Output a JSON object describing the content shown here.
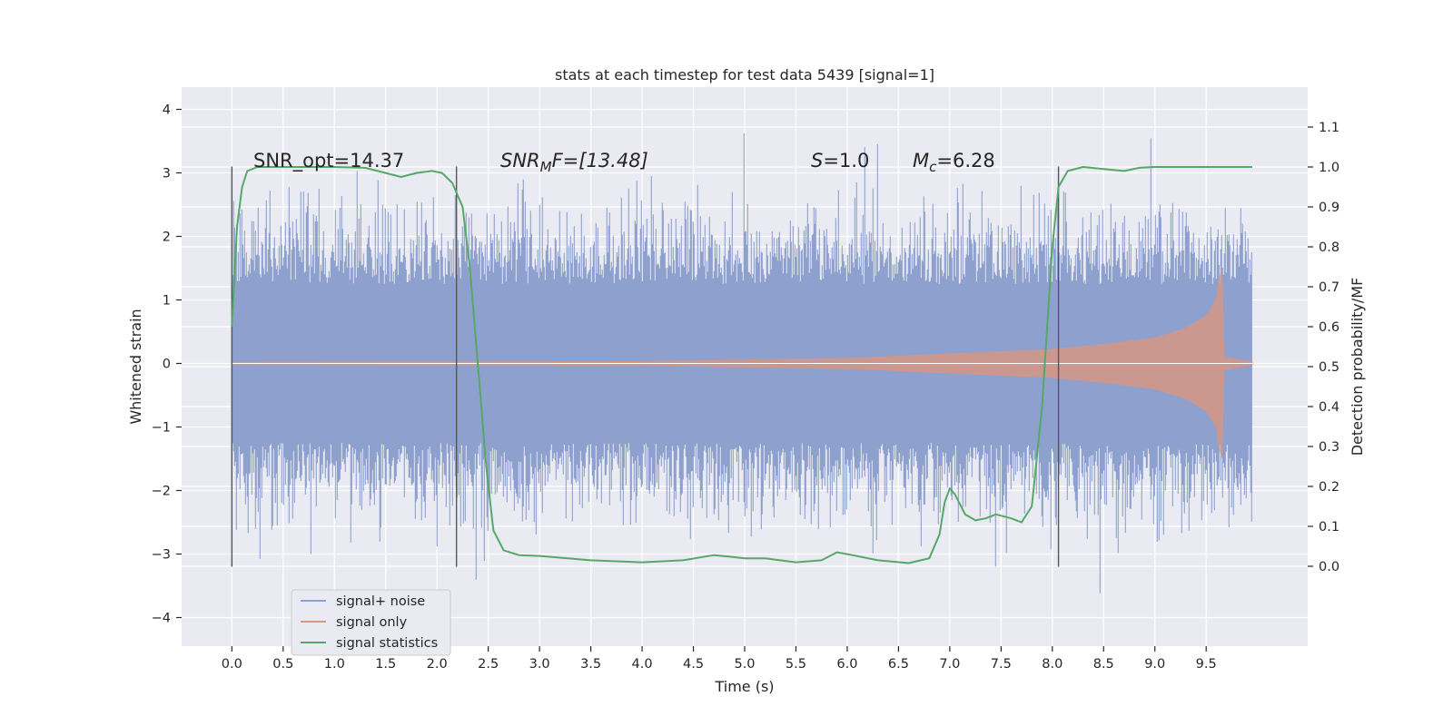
{
  "chart_data": {
    "type": "line",
    "title": "stats at each timestep for test data 5439 [signal=1]",
    "xlabel": "Time (s)",
    "ylabel_left": "Whitened strain",
    "ylabel_right": "Detection probability/MF",
    "xlim": [
      -0.49,
      10.49
    ],
    "ylim_left": [
      -4.45,
      4.35
    ],
    "ylim_right": [
      -0.2,
      1.2
    ],
    "x_ticks": [
      "0.0",
      "0.5",
      "1.0",
      "1.5",
      "2.0",
      "2.5",
      "3.0",
      "3.5",
      "4.0",
      "4.5",
      "5.0",
      "5.5",
      "6.0",
      "6.5",
      "7.0",
      "7.5",
      "8.0",
      "8.5",
      "9.0",
      "9.5"
    ],
    "x_tick_values": [
      0,
      0.5,
      1,
      1.5,
      2,
      2.5,
      3,
      3.5,
      4,
      4.5,
      5,
      5.5,
      6,
      6.5,
      7,
      7.5,
      8,
      8.5,
      9,
      9.5
    ],
    "y_ticks_left": [
      "4",
      "3",
      "2",
      "1",
      "0",
      "−1",
      "−2",
      "−3",
      "−4"
    ],
    "y_tick_values_left": [
      4,
      3,
      2,
      1,
      0,
      -1,
      -2,
      -3,
      -4
    ],
    "y_ticks_right": [
      "1.1",
      "1.0",
      "0.9",
      "0.8",
      "0.7",
      "0.6",
      "0.5",
      "0.4",
      "0.3",
      "0.2",
      "0.1",
      "0.0"
    ],
    "y_tick_values_right": [
      1.1,
      1.0,
      0.9,
      0.8,
      0.7,
      0.6,
      0.5,
      0.4,
      0.3,
      0.2,
      0.1,
      0.0
    ],
    "grid": true,
    "legend_position": "bottom-left",
    "annotations": {
      "snr_opt": "SNR_opt=14.37",
      "snr_mf_main": "SNR",
      "snr_mf_sub": "M",
      "snr_mf_rest": "F=[13.48]",
      "s_main": "S",
      "s_rest": "=1.0",
      "mc_main": "M",
      "mc_sub": "c",
      "mc_rest": "=6.28"
    },
    "vertical_lines_x": [
      0.0,
      2.19,
      8.06
    ],
    "series": [
      {
        "name": "signal+ noise",
        "color": "#8ea1ce",
        "axis": "left",
        "x_range": [
          0.0,
          9.95
        ],
        "envelope_core": 1.25,
        "peak_range": [
          -4.05,
          3.95
        ]
      },
      {
        "name": "signal only",
        "color": "#e0967a",
        "axis": "left",
        "x_range": [
          0.0,
          9.95
        ],
        "chirp_peak_x": 9.65,
        "amplitude": [
          [
            0.0,
            0.02
          ],
          [
            4.0,
            0.03
          ],
          [
            6.0,
            0.08
          ],
          [
            7.0,
            0.15
          ],
          [
            8.0,
            0.22
          ],
          [
            8.5,
            0.3
          ],
          [
            9.0,
            0.4
          ],
          [
            9.3,
            0.55
          ],
          [
            9.5,
            0.75
          ],
          [
            9.6,
            1.0
          ],
          [
            9.65,
            1.6
          ],
          [
            9.67,
            0.1
          ],
          [
            9.95,
            0.02
          ]
        ]
      },
      {
        "name": "signal statistics",
        "color": "#55a868",
        "axis": "right",
        "points": [
          [
            0.0,
            0.6
          ],
          [
            0.05,
            0.85
          ],
          [
            0.1,
            0.95
          ],
          [
            0.15,
            0.99
          ],
          [
            0.25,
            1.0
          ],
          [
            0.5,
            1.0
          ],
          [
            1.0,
            1.0
          ],
          [
            1.3,
            0.998
          ],
          [
            1.5,
            0.985
          ],
          [
            1.65,
            0.975
          ],
          [
            1.8,
            0.985
          ],
          [
            1.95,
            0.99
          ],
          [
            2.05,
            0.985
          ],
          [
            2.15,
            0.96
          ],
          [
            2.25,
            0.9
          ],
          [
            2.32,
            0.75
          ],
          [
            2.4,
            0.5
          ],
          [
            2.48,
            0.25
          ],
          [
            2.55,
            0.09
          ],
          [
            2.65,
            0.04
          ],
          [
            2.8,
            0.028
          ],
          [
            3.0,
            0.026
          ],
          [
            3.5,
            0.015
          ],
          [
            4.0,
            0.01
          ],
          [
            4.4,
            0.015
          ],
          [
            4.7,
            0.028
          ],
          [
            4.85,
            0.024
          ],
          [
            5.0,
            0.02
          ],
          [
            5.2,
            0.02
          ],
          [
            5.5,
            0.01
          ],
          [
            5.75,
            0.015
          ],
          [
            5.9,
            0.035
          ],
          [
            6.05,
            0.028
          ],
          [
            6.3,
            0.015
          ],
          [
            6.6,
            0.008
          ],
          [
            6.8,
            0.02
          ],
          [
            6.9,
            0.08
          ],
          [
            6.95,
            0.16
          ],
          [
            7.0,
            0.195
          ],
          [
            7.05,
            0.18
          ],
          [
            7.15,
            0.13
          ],
          [
            7.25,
            0.115
          ],
          [
            7.35,
            0.12
          ],
          [
            7.45,
            0.13
          ],
          [
            7.6,
            0.12
          ],
          [
            7.7,
            0.11
          ],
          [
            7.8,
            0.15
          ],
          [
            7.9,
            0.4
          ],
          [
            8.0,
            0.8
          ],
          [
            8.06,
            0.95
          ],
          [
            8.15,
            0.99
          ],
          [
            8.3,
            1.0
          ],
          [
            8.5,
            0.995
          ],
          [
            8.7,
            0.99
          ],
          [
            8.85,
            0.998
          ],
          [
            9.0,
            1.0
          ],
          [
            9.5,
            1.0
          ],
          [
            9.95,
            1.0
          ]
        ]
      }
    ]
  }
}
